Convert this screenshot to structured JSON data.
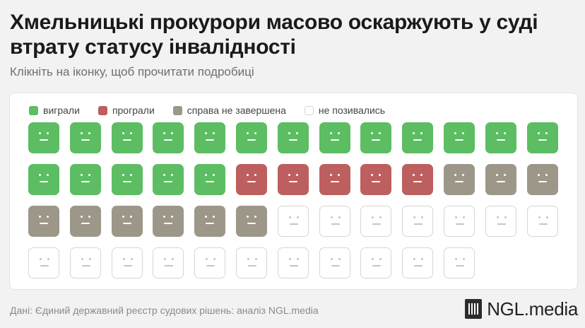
{
  "title": "Хмельницькі прокурори масово оскаржують у суді втрату статусу інвалідності",
  "subtitle": "Клікніть на іконку, щоб прочитати подробиці",
  "source": "Дані: Єдиний державний реєстр судових рішень: аналіз NGL.media",
  "brand": "NGL.media",
  "colors": {
    "won": "#5cbd63",
    "lost": "#bd5f5e",
    "pending": "#9d978a",
    "none": "#ffffff",
    "none_border": "#d6d6d6",
    "face_on_color": "#ffffff",
    "face_on_none": "#c4c4c4"
  },
  "chart_data": {
    "type": "icon-array",
    "title": "Хмельницькі прокурори масово оскаржують у суді втрату статусу інвалідності",
    "subtitle": "Клікніть на іконку, щоб прочитати подробиці",
    "legend": [
      {
        "key": "won",
        "label": "виграли"
      },
      {
        "key": "lost",
        "label": "програли"
      },
      {
        "key": "pending",
        "label": "справа не завершена"
      },
      {
        "key": "none",
        "label": "не позивались"
      }
    ],
    "counts": {
      "won": 18,
      "lost": 5,
      "pending": 9,
      "none": 18
    },
    "order": [
      "won",
      "lost",
      "pending",
      "none"
    ],
    "total": 50,
    "columns": 13,
    "legend_position": "top-left"
  }
}
